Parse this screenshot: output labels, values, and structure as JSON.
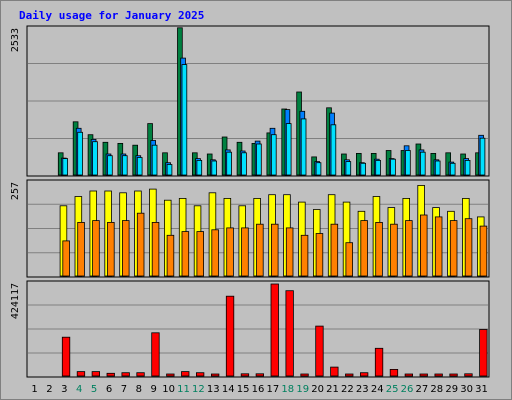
{
  "chart_data": {
    "type": "bar",
    "title": "Daily usage for January 2025",
    "categories": [
      "1",
      "2",
      "3",
      "4",
      "5",
      "6",
      "7",
      "8",
      "9",
      "10",
      "11",
      "12",
      "13",
      "14",
      "15",
      "16",
      "17",
      "18",
      "19",
      "20",
      "21",
      "22",
      "23",
      "24",
      "25",
      "26",
      "27",
      "28",
      "29",
      "30",
      "31"
    ],
    "weekend_days": [
      "4",
      "5",
      "11",
      "12",
      "18",
      "19",
      "25",
      "26"
    ],
    "panels": [
      {
        "name": "hits-pages-files",
        "max_label": "2533",
        "ylim": [
          0,
          2533
        ],
        "series": [
          {
            "values": [
              0,
              0,
              380,
              910,
              690,
              560,
              540,
              510,
              880,
              380,
              2520,
              380,
              360,
              650,
              560,
              540,
              720,
              1130,
              1420,
              310,
              1150,
              360,
              370,
              370,
              420,
              420,
              530,
              370,
              380,
              360,
              380
            ],
            "color": "#008040"
          },
          {
            "values": [
              0,
              0,
              290,
              800,
              610,
              360,
              360,
              330,
              590,
              210,
              2000,
              280,
              260,
              430,
              410,
              580,
              800,
              1120,
              1090,
              230,
              1060,
              260,
              210,
              270,
              280,
              500,
              430,
              260,
              220,
              280,
              680
            ],
            "color": "#0080ff"
          },
          {
            "values": [
              0,
              0,
              280,
              730,
              570,
              330,
              330,
              300,
              510,
              180,
              1890,
              250,
              240,
              390,
              380,
              530,
              690,
              880,
              960,
              210,
              860,
              230,
              200,
              250,
              270,
              420,
              390,
              240,
              200,
              250,
              630
            ],
            "color": "#00e0ff"
          },
          {
            "values": [
              0,
              0,
              0,
              0,
              0,
              0,
              0,
              0,
              0,
              0,
              0,
              0,
              0,
              0,
              0,
              0,
              0,
              0,
              0,
              0,
              0,
              0,
              0,
              0,
              0,
              0,
              0,
              0,
              0,
              0,
              0
            ],
            "color": "#ff0000"
          }
        ]
      },
      {
        "name": "visits-sites",
        "max_label": "257",
        "ylim": [
          0,
          257
        ],
        "series": [
          {
            "values": [
              0,
              0,
              190,
              215,
              230,
              230,
              225,
              230,
              235,
              205,
              210,
              190,
              225,
              210,
              190,
              210,
              220,
              220,
              200,
              180,
              220,
              200,
              175,
              215,
              185,
              210,
              245,
              185,
              175,
              210,
              160
            ],
            "color": "#ffff00"
          },
          {
            "values": [
              0,
              0,
              95,
              145,
              150,
              145,
              150,
              170,
              145,
              110,
              120,
              120,
              125,
              130,
              130,
              140,
              140,
              130,
              110,
              115,
              140,
              90,
              150,
              145,
              140,
              150,
              165,
              160,
              150,
              155,
              135
            ],
            "color": "#ff8000"
          }
        ]
      },
      {
        "name": "kbytes",
        "max_label": "424117",
        "ylim": [
          0,
          424117
        ],
        "series": [
          {
            "values": [
              0,
              0,
              175000,
              20000,
              20000,
              12000,
              15000,
              15000,
              195000,
              5000,
              20000,
              15000,
              5000,
              360000,
              10000,
              10000,
              415000,
              385000,
              5000,
              225000,
              40000,
              5000,
              15000,
              125000,
              30000,
              5000,
              5000,
              5000,
              5000,
              10000,
              210000
            ],
            "color": "#ff0000"
          }
        ]
      }
    ]
  }
}
